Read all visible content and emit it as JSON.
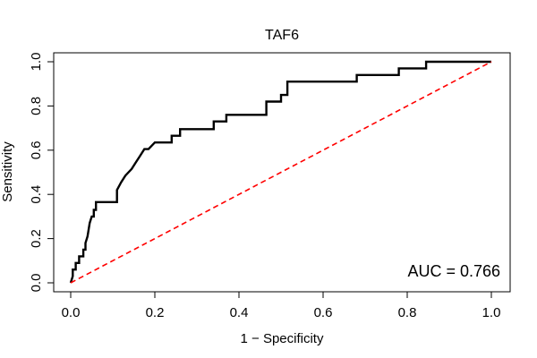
{
  "chart_data": {
    "type": "line",
    "title": "TAF6",
    "xlabel": "1 − Specificity",
    "ylabel": "Sensitivity",
    "xlim": [
      0,
      1
    ],
    "ylim": [
      0,
      1
    ],
    "xticks": [
      "0.0",
      "0.2",
      "0.4",
      "0.6",
      "0.8",
      "1.0"
    ],
    "yticks": [
      "0.0",
      "0.2",
      "0.4",
      "0.6",
      "0.8",
      "1.0"
    ],
    "grid": false,
    "annotation": "AUC = 0.766",
    "series": [
      {
        "color": "#000000",
        "style": "solid",
        "x": [
          0,
          0.005,
          0.005,
          0.012,
          0.012,
          0.02,
          0.02,
          0.03,
          0.03,
          0.035,
          0.035,
          0.04,
          0.045,
          0.05,
          0.055,
          0.055,
          0.06,
          0.06,
          0.065,
          0.11,
          0.11,
          0.12,
          0.12,
          0.13,
          0.13,
          0.145,
          0.145,
          0.155,
          0.155,
          0.165,
          0.165,
          0.175,
          0.175,
          0.185,
          0.185,
          0.2,
          0.2,
          0.24,
          0.24,
          0.26,
          0.26,
          0.34,
          0.34,
          0.37,
          0.37,
          0.465,
          0.465,
          0.5,
          0.5,
          0.515,
          0.515,
          0.68,
          0.68,
          0.78,
          0.78,
          0.845,
          0.845,
          1.0
        ],
        "y": [
          0,
          0.03,
          0.06,
          0.06,
          0.09,
          0.09,
          0.12,
          0.12,
          0.15,
          0.15,
          0.18,
          0.21,
          0.27,
          0.3,
          0.3,
          0.33,
          0.33,
          0.365,
          0.365,
          0.365,
          0.42,
          0.455,
          0.455,
          0.485,
          0.485,
          0.515,
          0.515,
          0.545,
          0.545,
          0.575,
          0.575,
          0.605,
          0.605,
          0.605,
          0.605,
          0.635,
          0.635,
          0.635,
          0.665,
          0.665,
          0.695,
          0.695,
          0.73,
          0.73,
          0.76,
          0.76,
          0.82,
          0.82,
          0.85,
          0.85,
          0.91,
          0.91,
          0.94,
          0.94,
          0.97,
          0.97,
          1.0,
          1.0
        ]
      },
      {
        "color": "#ff0000",
        "style": "dashed",
        "x": [
          0,
          1
        ],
        "y": [
          0,
          1
        ]
      }
    ]
  }
}
